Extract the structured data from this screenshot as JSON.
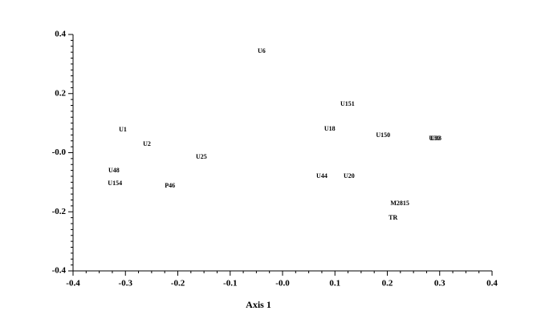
{
  "chart_data": {
    "type": "scatter",
    "x_label": "Axis 1",
    "labels": [
      "U6",
      "U151",
      "U1",
      "U2",
      "U18",
      "U150",
      "U30",
      "U33",
      "U25",
      "U48",
      "U154",
      "P46",
      "U44",
      "U20",
      "M2815",
      "TR"
    ],
    "x": [
      -0.04,
      0.124,
      -0.305,
      -0.259,
      0.09,
      0.192,
      0.29,
      0.293,
      -0.155,
      -0.322,
      -0.32,
      -0.215,
      0.075,
      0.127,
      0.224,
      0.211
    ],
    "y": [
      0.343,
      0.164,
      0.077,
      0.028,
      0.08,
      0.058,
      0.047,
      0.047,
      -0.015,
      -0.061,
      -0.105,
      -0.113,
      -0.08,
      -0.08,
      -0.172,
      -0.221
    ],
    "xlim": [
      -0.4,
      0.4
    ],
    "xticks": [
      -0.4,
      -0.3,
      -0.2,
      -0.1,
      {
        "value": 0,
        "label": "-0.0"
      },
      0.1,
      0.2,
      0.3,
      0.4
    ],
    "ylim": [
      -0.4,
      0.4
    ],
    "yticks": [
      -0.4,
      -0.2,
      {
        "value": 0,
        "label": "-0.0"
      },
      0.2,
      0.4
    ]
  }
}
